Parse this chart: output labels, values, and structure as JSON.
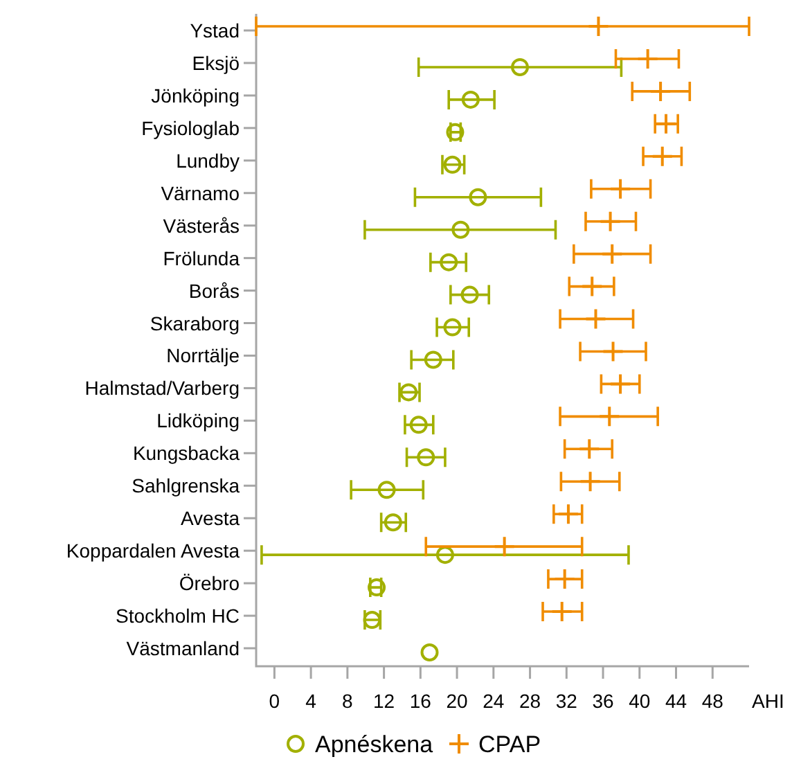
{
  "chart_data": {
    "type": "scatter",
    "orientation": "horizontal",
    "xlabel": "AHI",
    "legend": "bottom",
    "categories": [
      "Ystad",
      "Eksjö",
      "Jönköping",
      "Fysiologlab",
      "Lundby",
      "Värnamo",
      "Västerås",
      "Frölunda",
      "Borås",
      "Skaraborg",
      "Norrtälje",
      "Halmstad/Varberg",
      "Lidköping",
      "Kungsbacka",
      "Sahlgrenska",
      "Avesta",
      "Koppardalen Avesta",
      "Örebro",
      "Stockholm HC",
      "Västmanland"
    ],
    "xlim": [
      -2,
      52
    ],
    "xticks": [
      0,
      4,
      8,
      12,
      16,
      20,
      24,
      28,
      32,
      36,
      40,
      44,
      48
    ],
    "series": [
      {
        "name": "Apnéskena",
        "color": "#a2b000",
        "marker": "circle",
        "values": [
          null,
          26.9,
          21.5,
          19.8,
          19.5,
          22.3,
          20.4,
          19.1,
          21.4,
          19.5,
          17.4,
          14.7,
          15.8,
          16.6,
          12.3,
          13.0,
          18.7,
          11.2,
          10.7,
          17.0
        ],
        "errors": [
          null,
          [
            15.8,
            38
          ],
          [
            19.1,
            24.1
          ],
          [
            19.3,
            20.4
          ],
          [
            18.4,
            20.8
          ],
          [
            15.4,
            29.2
          ],
          [
            9.9,
            30.8
          ],
          [
            17.1,
            21.0
          ],
          [
            19.3,
            23.5
          ],
          [
            17.8,
            21.3
          ],
          [
            15.0,
            19.6
          ],
          [
            13.7,
            15.9
          ],
          [
            14.3,
            17.4
          ],
          [
            14.5,
            18.7
          ],
          [
            8.4,
            16.3
          ],
          [
            11.7,
            14.4
          ],
          [
            -1.4,
            38.8
          ],
          [
            10.5,
            11.7
          ],
          [
            9.9,
            11.6
          ],
          null
        ]
      },
      {
        "name": "CPAP",
        "color": "#f08c00",
        "marker": "cross",
        "values": [
          35.5,
          40.9,
          42.3,
          42.9,
          42.5,
          37.9,
          36.8,
          37.0,
          34.8,
          35.2,
          37.1,
          37.9,
          36.7,
          34.5,
          34.6,
          32.2,
          25.2,
          31.8,
          31.5,
          null
        ],
        "errors": [
          [
            -2,
            52
          ],
          [
            37.4,
            44.3
          ],
          [
            39.2,
            45.5
          ],
          [
            41.7,
            44.2
          ],
          [
            40.4,
            44.6
          ],
          [
            34.7,
            41.2
          ],
          [
            34.1,
            39.6
          ],
          [
            32.8,
            41.2
          ],
          [
            32.3,
            37.2
          ],
          [
            31.3,
            39.3
          ],
          [
            33.5,
            40.7
          ],
          [
            35.8,
            40.0
          ],
          [
            31.3,
            42.0
          ],
          [
            31.8,
            37.0
          ],
          [
            31.4,
            37.8
          ],
          [
            30.6,
            33.7
          ],
          [
            16.6,
            33.7
          ],
          [
            30.0,
            33.7
          ],
          [
            29.4,
            33.7
          ],
          null
        ]
      }
    ]
  }
}
